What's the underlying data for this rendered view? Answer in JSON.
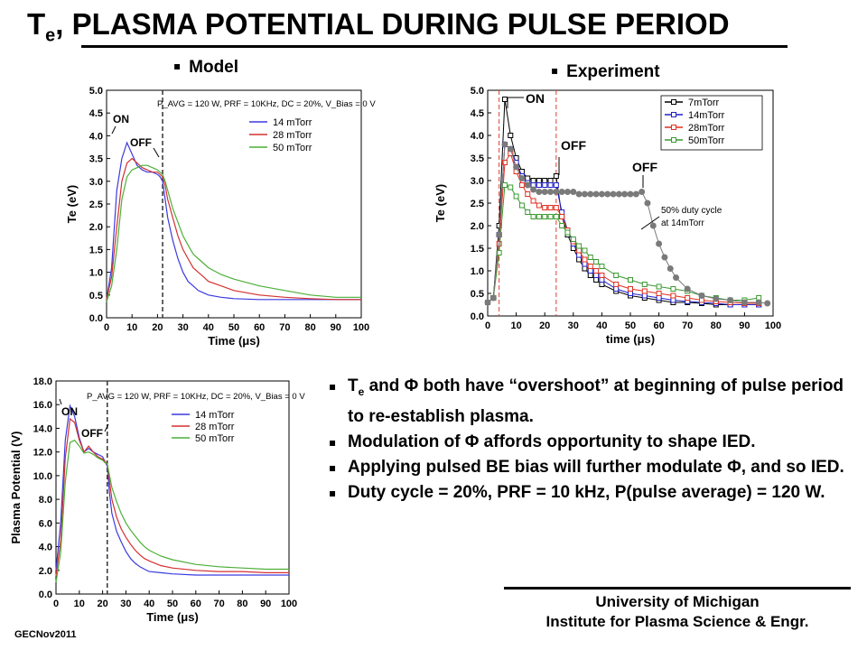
{
  "title": {
    "prefix": "T",
    "sub": "e",
    "rest": ", PLASMA POTENTIAL DURING PULSE PERIOD"
  },
  "headers": {
    "bullet": "▪",
    "model": "Model",
    "experiment": "Experiment"
  },
  "bullets": [
    {
      "pre": "T",
      "sub": "e",
      "text": " and Φ both have “overshoot” at beginning of pulse period to re-establish plasma."
    },
    {
      "pre": "",
      "sub": "",
      "text": "Modulation of Φ affords opportunity to shape IED."
    },
    {
      "pre": "",
      "sub": "",
      "text": "Applying pulsed BE bias will further modulate Φ, and so IED."
    },
    {
      "pre": "",
      "sub": "",
      "text": "Duty cycle = 20%, PRF = 10 kHz, P(pulse average) = 120 W."
    }
  ],
  "footer": {
    "line1": "University of Michigan",
    "line2": "Institute for Plasma Science & Engr."
  },
  "gec": "GECNov2011",
  "chart_data": [
    {
      "type": "line",
      "title": "",
      "xlabel": "Time (μs)",
      "ylabel": "Te (eV)",
      "xlim": [
        0,
        100
      ],
      "ylim": [
        0,
        5.0
      ],
      "xticks": [
        "0",
        "10",
        "20",
        "30",
        "40",
        "50",
        "60",
        "70",
        "80",
        "90",
        "100"
      ],
      "yticks": [
        "0.0",
        "0.5",
        "1.0",
        "1.5",
        "2.0",
        "2.5",
        "3.0",
        "3.5",
        "4.0",
        "4.5",
        "5.0"
      ],
      "condition": "P_AVG = 120 W, PRF = 10KHz, DC = 20%, V_Bias = 0 V",
      "annotations": [
        "ON",
        "OFF"
      ],
      "legend_position": "upper-right",
      "series": [
        {
          "name": "14 mTorr",
          "color": "#3a3ae0",
          "x": [
            0,
            2,
            4,
            6,
            8,
            10,
            12,
            14,
            16,
            18,
            20,
            21,
            22,
            23,
            24,
            26,
            28,
            30,
            32,
            34,
            36,
            38,
            40,
            45,
            50,
            60,
            70,
            80,
            90,
            100
          ],
          "y": [
            0.4,
            1.1,
            2.8,
            3.5,
            3.85,
            3.6,
            3.35,
            3.25,
            3.2,
            3.2,
            3.15,
            3.1,
            3.0,
            2.6,
            2.2,
            1.7,
            1.3,
            1.0,
            0.8,
            0.7,
            0.6,
            0.55,
            0.5,
            0.45,
            0.42,
            0.4,
            0.4,
            0.4,
            0.4,
            0.4
          ]
        },
        {
          "name": "28 mTorr",
          "color": "#d43030",
          "x": [
            0,
            2,
            4,
            6,
            8,
            10,
            12,
            14,
            16,
            18,
            20,
            21,
            22,
            23,
            24,
            26,
            28,
            30,
            32,
            34,
            36,
            38,
            40,
            45,
            50,
            60,
            70,
            80,
            90,
            100
          ],
          "y": [
            0.4,
            0.9,
            2.0,
            3.0,
            3.4,
            3.5,
            3.4,
            3.3,
            3.25,
            3.2,
            3.2,
            3.15,
            3.1,
            2.9,
            2.6,
            2.2,
            1.8,
            1.5,
            1.3,
            1.1,
            1.0,
            0.9,
            0.8,
            0.7,
            0.6,
            0.5,
            0.45,
            0.42,
            0.4,
            0.4
          ]
        },
        {
          "name": "50 mTorr",
          "color": "#4caf38",
          "x": [
            0,
            2,
            4,
            6,
            8,
            10,
            12,
            14,
            16,
            18,
            20,
            21,
            22,
            23,
            24,
            26,
            28,
            30,
            32,
            34,
            36,
            38,
            40,
            45,
            50,
            60,
            70,
            80,
            90,
            100
          ],
          "y": [
            0.35,
            0.7,
            1.5,
            2.6,
            3.1,
            3.25,
            3.3,
            3.35,
            3.35,
            3.3,
            3.25,
            3.2,
            3.15,
            3.0,
            2.8,
            2.4,
            2.1,
            1.8,
            1.6,
            1.4,
            1.3,
            1.2,
            1.1,
            0.95,
            0.85,
            0.7,
            0.6,
            0.5,
            0.45,
            0.45
          ]
        }
      ]
    },
    {
      "type": "line",
      "title": "",
      "xlabel": "time (μs)",
      "ylabel": "Te (eV)",
      "xlim": [
        0,
        100
      ],
      "ylim": [
        0,
        5.0
      ],
      "xticks": [
        "0",
        "10",
        "20",
        "30",
        "40",
        "50",
        "60",
        "70",
        "80",
        "90",
        "100"
      ],
      "yticks": [
        "0.0",
        "0.5",
        "1.0",
        "1.5",
        "2.0",
        "2.5",
        "3.0",
        "3.5",
        "4.0",
        "4.5",
        "5.0"
      ],
      "annotations": [
        "ON",
        "OFF",
        "OFF",
        "50% duty cycle at 14mTorr"
      ],
      "legend_position": "upper-right",
      "series": [
        {
          "name": "7mTorr",
          "color": "#000000",
          "marker": "square",
          "x": [
            0,
            2,
            4,
            6,
            8,
            10,
            12,
            14,
            16,
            18,
            20,
            22,
            24,
            26,
            28,
            30,
            32,
            34,
            36,
            38,
            40,
            45,
            50,
            55,
            60,
            65,
            70,
            75,
            80,
            85,
            90,
            95
          ],
          "y": [
            0.3,
            0.4,
            2.0,
            4.8,
            4.0,
            3.5,
            3.2,
            3.05,
            3.0,
            3.0,
            3.0,
            3.0,
            3.1,
            2.2,
            1.8,
            1.5,
            1.25,
            1.05,
            0.9,
            0.8,
            0.7,
            0.55,
            0.45,
            0.4,
            0.35,
            0.3,
            0.3,
            0.28,
            0.25,
            0.25,
            0.25,
            0.25
          ]
        },
        {
          "name": "14mTorr",
          "color": "#2020c8",
          "marker": "square",
          "x": [
            0,
            2,
            4,
            6,
            8,
            10,
            12,
            14,
            16,
            18,
            20,
            22,
            24,
            26,
            28,
            30,
            32,
            34,
            36,
            38,
            40,
            45,
            50,
            55,
            60,
            65,
            70,
            75,
            80,
            85,
            90,
            95
          ],
          "y": [
            0.3,
            0.4,
            1.8,
            3.8,
            3.7,
            3.4,
            3.1,
            2.95,
            2.9,
            2.9,
            2.9,
            2.9,
            2.9,
            2.3,
            1.9,
            1.6,
            1.35,
            1.15,
            1.0,
            0.9,
            0.8,
            0.6,
            0.5,
            0.45,
            0.4,
            0.35,
            0.32,
            0.3,
            0.28,
            0.25,
            0.25,
            0.25
          ]
        },
        {
          "name": "28mTorr",
          "color": "#e03020",
          "marker": "square",
          "x": [
            0,
            2,
            4,
            6,
            8,
            10,
            12,
            14,
            16,
            18,
            20,
            22,
            24,
            26,
            28,
            30,
            32,
            34,
            36,
            38,
            40,
            45,
            50,
            55,
            60,
            65,
            70,
            75,
            80,
            85,
            90,
            95
          ],
          "y": [
            0.3,
            0.4,
            1.6,
            3.4,
            3.6,
            3.2,
            2.9,
            2.7,
            2.55,
            2.45,
            2.4,
            2.4,
            2.4,
            2.2,
            1.9,
            1.65,
            1.45,
            1.25,
            1.1,
            1.0,
            0.9,
            0.7,
            0.6,
            0.55,
            0.5,
            0.45,
            0.4,
            0.35,
            0.32,
            0.3,
            0.28,
            0.28
          ]
        },
        {
          "name": "50mTorr",
          "color": "#3a9a30",
          "marker": "square",
          "x": [
            0,
            2,
            4,
            6,
            8,
            10,
            12,
            14,
            16,
            18,
            20,
            22,
            24,
            26,
            28,
            30,
            32,
            34,
            36,
            38,
            40,
            45,
            50,
            55,
            60,
            65,
            70,
            75,
            80,
            85,
            90,
            95
          ],
          "y": [
            0.3,
            0.4,
            1.4,
            2.9,
            2.85,
            2.65,
            2.45,
            2.3,
            2.2,
            2.2,
            2.2,
            2.2,
            2.2,
            2.0,
            1.85,
            1.7,
            1.55,
            1.45,
            1.3,
            1.2,
            1.1,
            0.9,
            0.8,
            0.7,
            0.65,
            0.6,
            0.55,
            0.45,
            0.4,
            0.35,
            0.35,
            0.4
          ]
        },
        {
          "name": "50% duty cycle at 14mTorr",
          "color": "#7a7a7a",
          "marker": "circle",
          "x": [
            0,
            2,
            4,
            6,
            8,
            10,
            12,
            14,
            16,
            18,
            20,
            22,
            24,
            26,
            28,
            30,
            32,
            34,
            36,
            38,
            40,
            42,
            44,
            46,
            48,
            50,
            52,
            54,
            56,
            58,
            60,
            62,
            64,
            66,
            70,
            75,
            80,
            85,
            90,
            95,
            98
          ],
          "y": [
            0.3,
            0.4,
            1.8,
            3.8,
            3.7,
            3.3,
            3.05,
            2.9,
            2.8,
            2.75,
            2.75,
            2.75,
            2.75,
            2.75,
            2.75,
            2.75,
            2.7,
            2.7,
            2.7,
            2.7,
            2.7,
            2.7,
            2.7,
            2.7,
            2.7,
            2.7,
            2.7,
            2.75,
            2.5,
            2.0,
            1.6,
            1.3,
            1.05,
            0.85,
            0.6,
            0.45,
            0.38,
            0.35,
            0.3,
            0.3,
            0.28
          ]
        }
      ]
    },
    {
      "type": "line",
      "title": "",
      "xlabel": "Time (μs)",
      "ylabel": "Plasma Potential (V)",
      "xlim": [
        0,
        100
      ],
      "ylim": [
        0,
        18.0
      ],
      "xticks": [
        "0",
        "10",
        "20",
        "30",
        "40",
        "50",
        "60",
        "70",
        "80",
        "90",
        "100"
      ],
      "yticks": [
        "0.0",
        "2.0",
        "4.0",
        "6.0",
        "8.0",
        "10.0",
        "12.0",
        "14.0",
        "16.0",
        "18.0"
      ],
      "condition": "P_AVG = 120 W, PRF = 10KHz, DC = 20%, V_Bias = 0 V",
      "annotations": [
        "ON",
        "OFF"
      ],
      "legend_position": "upper-right",
      "series": [
        {
          "name": "14 mTorr",
          "color": "#3a3ae0",
          "x": [
            0,
            2,
            4,
            6,
            8,
            10,
            12,
            14,
            16,
            18,
            20,
            21,
            22,
            23,
            24,
            26,
            28,
            30,
            32,
            34,
            36,
            38,
            40,
            45,
            50,
            60,
            70,
            80,
            90,
            100
          ],
          "y": [
            2.0,
            6.0,
            13.0,
            15.9,
            15.0,
            13.2,
            12.0,
            12.3,
            12.0,
            11.8,
            11.6,
            11.2,
            10.8,
            8.5,
            6.8,
            5.3,
            4.4,
            3.6,
            3.0,
            2.6,
            2.3,
            2.1,
            1.9,
            1.8,
            1.7,
            1.6,
            1.6,
            1.6,
            1.6,
            1.6
          ]
        },
        {
          "name": "28 mTorr",
          "color": "#d43030",
          "x": [
            0,
            2,
            4,
            6,
            8,
            10,
            12,
            14,
            16,
            18,
            20,
            21,
            22,
            23,
            24,
            26,
            28,
            30,
            32,
            34,
            36,
            38,
            40,
            45,
            50,
            60,
            70,
            80,
            90,
            100
          ],
          "y": [
            1.5,
            4.5,
            11.5,
            14.8,
            14.5,
            13.0,
            12.0,
            12.5,
            12.0,
            11.6,
            11.4,
            11.2,
            11.0,
            9.5,
            8.0,
            6.5,
            5.5,
            4.8,
            4.2,
            3.7,
            3.3,
            3.0,
            2.8,
            2.4,
            2.2,
            2.0,
            1.9,
            1.9,
            1.8,
            1.8
          ]
        },
        {
          "name": "50 mTorr",
          "color": "#4caf38",
          "x": [
            0,
            2,
            4,
            6,
            8,
            10,
            12,
            14,
            16,
            18,
            20,
            21,
            22,
            23,
            24,
            26,
            28,
            30,
            32,
            34,
            36,
            38,
            40,
            45,
            50,
            60,
            70,
            80,
            90,
            100
          ],
          "y": [
            1.0,
            3.5,
            9.5,
            12.8,
            13.0,
            12.5,
            11.9,
            12.0,
            11.8,
            11.5,
            11.3,
            11.1,
            11.0,
            10.0,
            9.0,
            7.8,
            6.8,
            6.0,
            5.4,
            4.9,
            4.4,
            4.0,
            3.7,
            3.2,
            2.9,
            2.5,
            2.3,
            2.2,
            2.1,
            2.1
          ]
        }
      ]
    }
  ]
}
